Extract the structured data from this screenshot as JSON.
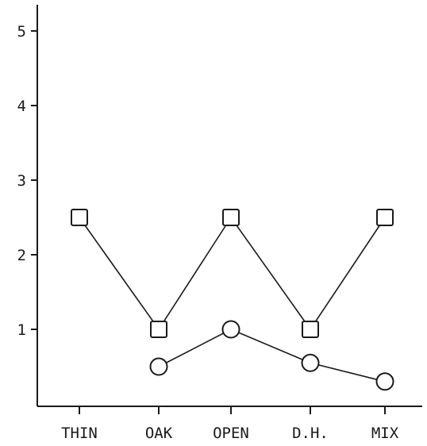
{
  "chart_data": {
    "type": "line",
    "categories": [
      "THIN",
      "OAK",
      "OPEN",
      "D.H.",
      "MIX"
    ],
    "series": [
      {
        "marker": "square",
        "values": [
          2.5,
          1.0,
          2.5,
          1.0,
          2.5
        ]
      },
      {
        "marker": "circle",
        "values": [
          null,
          0.5,
          1.0,
          0.55,
          0.3
        ]
      }
    ],
    "yticks": [
      "1",
      "2",
      "3",
      "4",
      "5"
    ],
    "ylim": [
      0,
      5.2
    ],
    "grid": false,
    "legend": "none",
    "color": "#1a1a1a"
  }
}
